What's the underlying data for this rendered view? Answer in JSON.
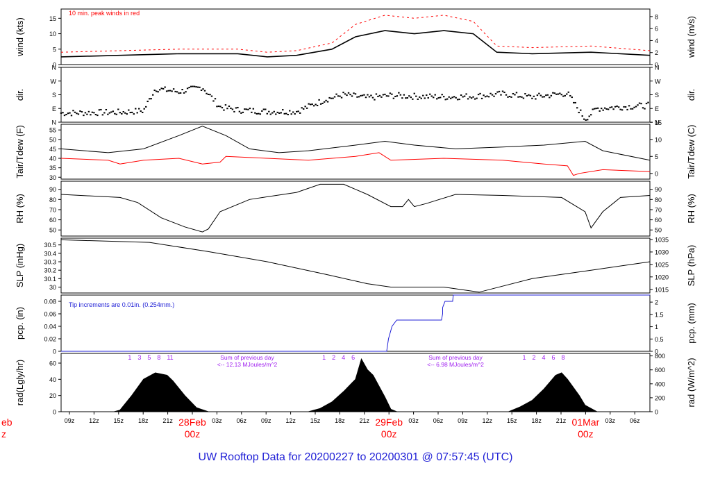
{
  "footer_title": "UW Rooftop Data for 20200227  to  20200301 @ 07:57:45  (UTC)",
  "colors": {
    "frame": "#000000",
    "red": "#ff0000",
    "blue": "#1f1fd6",
    "purple": "#a020f0"
  },
  "chart_data": [
    {
      "id": "wind",
      "type": "line",
      "ylabel": "wind (kts)",
      "ylabel_right": "wind (m/s)",
      "ylim": [
        0,
        18
      ],
      "yticks": [
        0,
        5,
        10,
        15
      ],
      "right_ylim": [
        0,
        9.26
      ],
      "right_yticks": [
        0,
        2,
        4,
        6,
        8
      ],
      "annotation": "10 min. peak winds in red",
      "series": [
        {
          "color": "#000000",
          "points": [
            [
              0,
              2.5
            ],
            [
              10,
              3
            ],
            [
              20,
              3.5
            ],
            [
              30,
              3.5
            ],
            [
              35,
              2.5
            ],
            [
              40,
              3
            ],
            [
              46,
              5
            ],
            [
              50,
              9
            ],
            [
              55,
              11
            ],
            [
              60,
              10
            ],
            [
              65,
              11
            ],
            [
              70,
              10
            ],
            [
              74,
              4
            ],
            [
              80,
              3.5
            ],
            [
              90,
              4
            ],
            [
              100,
              3
            ]
          ]
        },
        {
          "color": "#ff0000",
          "style": "dash",
          "points": [
            [
              0,
              4
            ],
            [
              10,
              4.5
            ],
            [
              20,
              5
            ],
            [
              30,
              5
            ],
            [
              35,
              4
            ],
            [
              40,
              4.5
            ],
            [
              46,
              7
            ],
            [
              50,
              13
            ],
            [
              55,
              16
            ],
            [
              60,
              15
            ],
            [
              65,
              16
            ],
            [
              70,
              14
            ],
            [
              74,
              6
            ],
            [
              80,
              5.5
            ],
            [
              90,
              6
            ],
            [
              100,
              4.5
            ]
          ]
        }
      ]
    },
    {
      "id": "dir",
      "type": "scatter",
      "ylabel": "dir.",
      "ylabel_right": "dir.",
      "ylim": [
        0,
        360
      ],
      "yticks": [
        0,
        90,
        180,
        270,
        360
      ],
      "ytick_labels": [
        "N",
        "E",
        "S",
        "W",
        "N"
      ]
    },
    {
      "id": "temp",
      "type": "line",
      "ylabel": "Tair/Tdew (F)",
      "ylabel_right": "Tair/Tdew (C)",
      "ylim": [
        29,
        58
      ],
      "yticks": [
        30,
        35,
        40,
        45,
        50,
        55
      ],
      "right_ylim": [
        -1.67,
        14.44
      ],
      "right_yticks": [
        0,
        5,
        10,
        15
      ],
      "series": [
        {
          "color": "#000000",
          "points": [
            [
              0,
              45
            ],
            [
              8,
              43
            ],
            [
              14,
              45
            ],
            [
              20,
              52
            ],
            [
              24,
              57
            ],
            [
              28,
              52
            ],
            [
              32,
              45
            ],
            [
              37,
              43
            ],
            [
              42,
              44
            ],
            [
              50,
              47
            ],
            [
              55,
              49
            ],
            [
              60,
              47
            ],
            [
              67,
              45
            ],
            [
              75,
              46
            ],
            [
              82,
              47
            ],
            [
              89,
              49
            ],
            [
              92,
              44
            ],
            [
              100,
              39
            ]
          ]
        },
        {
          "color": "#ff0000",
          "points": [
            [
              0,
              40
            ],
            [
              8,
              39
            ],
            [
              10,
              37
            ],
            [
              14,
              39
            ],
            [
              20,
              40
            ],
            [
              24,
              37
            ],
            [
              27,
              38
            ],
            [
              28,
              41
            ],
            [
              35,
              40
            ],
            [
              42,
              39
            ],
            [
              50,
              41
            ],
            [
              54,
              43
            ],
            [
              56,
              39
            ],
            [
              65,
              40
            ],
            [
              75,
              39
            ],
            [
              82,
              37
            ],
            [
              86,
              36
            ],
            [
              87,
              31
            ],
            [
              88,
              32
            ],
            [
              92,
              34
            ],
            [
              100,
              33
            ]
          ]
        }
      ]
    },
    {
      "id": "rh",
      "type": "line",
      "ylabel": "RH (%)",
      "ylabel_right": "RH (%)",
      "ylim": [
        44,
        98
      ],
      "yticks": [
        50,
        60,
        70,
        80,
        90
      ],
      "right_yticks": [
        50,
        60,
        70,
        80,
        90
      ],
      "series": [
        {
          "color": "#000000",
          "points": [
            [
              0,
              85
            ],
            [
              10,
              82
            ],
            [
              13,
              77
            ],
            [
              17,
              62
            ],
            [
              21,
              53
            ],
            [
              24,
              48
            ],
            [
              25,
              51
            ],
            [
              27,
              68
            ],
            [
              32,
              80
            ],
            [
              40,
              87
            ],
            [
              44,
              95
            ],
            [
              48,
              95
            ],
            [
              52,
              85
            ],
            [
              56,
              73
            ],
            [
              58,
              73
            ],
            [
              59,
              80
            ],
            [
              60,
              73
            ],
            [
              62,
              76
            ],
            [
              67,
              85
            ],
            [
              75,
              84
            ],
            [
              85,
              82
            ],
            [
              89,
              68
            ],
            [
              90,
              52
            ],
            [
              92,
              68
            ],
            [
              95,
              82
            ],
            [
              100,
              84
            ]
          ]
        }
      ]
    },
    {
      "id": "slp",
      "type": "line",
      "ylabel": "SLP (inHg)",
      "ylabel_right": "SLP (hPa)",
      "ylim": [
        29.93,
        30.58
      ],
      "yticks": [
        30.0,
        30.1,
        30.2,
        30.3,
        30.4,
        30.5
      ],
      "right_ylim": [
        1013.54,
        1035.55
      ],
      "right_yticks": [
        1015,
        1020,
        1025,
        1030,
        1035
      ],
      "series": [
        {
          "color": "#000000",
          "points": [
            [
              0,
              30.56
            ],
            [
              15,
              30.53
            ],
            [
              25,
              30.42
            ],
            [
              35,
              30.3
            ],
            [
              45,
              30.15
            ],
            [
              52,
              30.04
            ],
            [
              56,
              30.0
            ],
            [
              65,
              30.0
            ],
            [
              71,
              29.94
            ],
            [
              80,
              30.1
            ],
            [
              90,
              30.2
            ],
            [
              100,
              30.3
            ]
          ]
        }
      ]
    },
    {
      "id": "pcp",
      "type": "line",
      "ylabel": "pcp. (in)",
      "ylabel_right": "pcp. (mm)",
      "ylim": [
        0,
        0.09
      ],
      "yticks": [
        0,
        0.02,
        0.04,
        0.06,
        0.08
      ],
      "right_ylim": [
        0,
        2.286
      ],
      "right_yticks": [
        0,
        0.5,
        1,
        1.5,
        2
      ],
      "annotation": "Tip increments are 0.01in. (0.254mm.)",
      "series": [
        {
          "color": "#1f1fd6",
          "points": [
            [
              0,
              0
            ],
            [
              55.3,
              0
            ],
            [
              55.6,
              0.02
            ],
            [
              56.2,
              0.04
            ],
            [
              57,
              0.05
            ],
            [
              64.6,
              0.05
            ],
            [
              64.8,
              0.06
            ],
            [
              64.8,
              0.07
            ],
            [
              65.2,
              0.08
            ],
            [
              66.5,
              0.08
            ],
            [
              66.6,
              0.09
            ],
            [
              100,
              0.09
            ]
          ]
        }
      ]
    },
    {
      "id": "rad",
      "type": "area",
      "ylabel": "rad(Lgly/hr)",
      "ylabel_right": "rad (W/m^2)",
      "ylim": [
        0,
        72
      ],
      "yticks": [
        0,
        20,
        40,
        60
      ],
      "right_ylim": [
        0,
        836
      ],
      "right_yticks": [
        0,
        200,
        400,
        600,
        800
      ],
      "hour_labels": [
        [
          "1",
          "3",
          "5",
          "8",
          "11"
        ],
        [
          "1",
          "2",
          "4",
          "6"
        ],
        [
          "1",
          "2",
          "4",
          "6",
          "8"
        ]
      ],
      "daily_sums": [
        "Sum of previous day\n<-- 12.13 MJoules/m^2",
        "Sum of previous day\n<-- 6.98 MJoules/m^2"
      ],
      "days": [
        {
          "points": [
            [
              9,
              0
            ],
            [
              10,
              2
            ],
            [
              12,
              20
            ],
            [
              14,
              40
            ],
            [
              16,
              48
            ],
            [
              18,
              45
            ],
            [
              19,
              38
            ],
            [
              21,
              20
            ],
            [
              23,
              5
            ],
            [
              25,
              0
            ]
          ]
        },
        {
          "points": [
            [
              42,
              0
            ],
            [
              44,
              4
            ],
            [
              46,
              12
            ],
            [
              48,
              25
            ],
            [
              50,
              40
            ],
            [
              51,
              65
            ],
            [
              52,
              52
            ],
            [
              53,
              45
            ],
            [
              55,
              18
            ],
            [
              56,
              3
            ],
            [
              57,
              0
            ]
          ]
        },
        {
          "points": [
            [
              76,
              0
            ],
            [
              78,
              6
            ],
            [
              80,
              14
            ],
            [
              82,
              28
            ],
            [
              84,
              45
            ],
            [
              85,
              48
            ],
            [
              86,
              40
            ],
            [
              88,
              20
            ],
            [
              89,
              8
            ],
            [
              91,
              0
            ]
          ]
        }
      ]
    }
  ],
  "x_axis": {
    "tick_labels": [
      "09z",
      "12z",
      "15z",
      "18z",
      "21z",
      "03z",
      "06z",
      "09z",
      "12z",
      "15z",
      "18z",
      "21z",
      "03z",
      "06z",
      "09z",
      "12z",
      "15z",
      "18z",
      "21z",
      "03z",
      "06z"
    ],
    "day_labels": [
      {
        "date": "28Feb",
        "hour": "00z"
      },
      {
        "date": "29Feb",
        "hour": "00z"
      },
      {
        "date": "01Mar",
        "hour": "00z"
      }
    ],
    "left_edge_label": {
      "date": "eb",
      "hour": "z"
    }
  }
}
